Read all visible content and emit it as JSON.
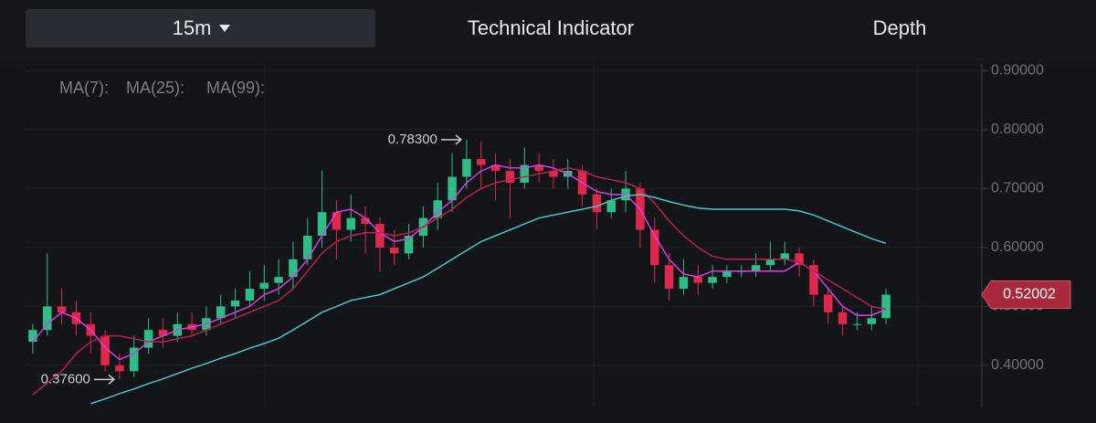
{
  "tabs": {
    "interval": "15m",
    "indicator": "Technical Indicator",
    "depth": "Depth"
  },
  "chart_data": {
    "type": "candlestick",
    "ylim": [
      0.33,
      0.91
    ],
    "yticks": [
      {
        "value": 0.4,
        "label": "0.40000"
      },
      {
        "value": 0.5,
        "label": "0.50000"
      },
      {
        "value": 0.6,
        "label": "0.60000"
      },
      {
        "value": 0.7,
        "label": "0.70000"
      },
      {
        "value": 0.8,
        "label": "0.80000"
      },
      {
        "value": 0.9,
        "label": "0.90000"
      }
    ],
    "grid": true,
    "up_color": "#2ebd85",
    "down_color": "#e0294a",
    "candles": {
      "open": [
        0.44,
        0.46,
        0.5,
        0.49,
        0.47,
        0.45,
        0.4,
        0.39,
        0.43,
        0.46,
        0.45,
        0.47,
        0.46,
        0.48,
        0.5,
        0.51,
        0.53,
        0.54,
        0.55,
        0.58,
        0.62,
        0.66,
        0.63,
        0.65,
        0.64,
        0.6,
        0.59,
        0.62,
        0.65,
        0.68,
        0.72,
        0.75,
        0.74,
        0.73,
        0.71,
        0.74,
        0.73,
        0.72,
        0.73,
        0.69,
        0.66,
        0.68,
        0.7,
        0.63,
        0.57,
        0.53,
        0.55,
        0.54,
        0.55,
        0.56,
        0.56,
        0.57,
        0.58,
        0.59,
        0.57,
        0.52,
        0.49,
        0.47,
        0.47,
        0.48
      ],
      "high": [
        0.47,
        0.59,
        0.53,
        0.51,
        0.49,
        0.46,
        0.42,
        0.45,
        0.48,
        0.48,
        0.49,
        0.49,
        0.5,
        0.52,
        0.53,
        0.56,
        0.57,
        0.58,
        0.61,
        0.65,
        0.73,
        0.68,
        0.69,
        0.67,
        0.65,
        0.63,
        0.64,
        0.67,
        0.71,
        0.76,
        0.783,
        0.78,
        0.76,
        0.75,
        0.77,
        0.76,
        0.75,
        0.75,
        0.74,
        0.7,
        0.7,
        0.73,
        0.71,
        0.65,
        0.59,
        0.58,
        0.57,
        0.57,
        0.57,
        0.57,
        0.59,
        0.61,
        0.61,
        0.6,
        0.58,
        0.53,
        0.5,
        0.49,
        0.5,
        0.53
      ],
      "low": [
        0.42,
        0.45,
        0.47,
        0.45,
        0.42,
        0.39,
        0.376,
        0.38,
        0.42,
        0.43,
        0.44,
        0.45,
        0.45,
        0.47,
        0.48,
        0.5,
        0.51,
        0.52,
        0.53,
        0.57,
        0.6,
        0.58,
        0.61,
        0.59,
        0.56,
        0.57,
        0.58,
        0.6,
        0.63,
        0.66,
        0.7,
        0.7,
        0.68,
        0.65,
        0.7,
        0.71,
        0.7,
        0.7,
        0.67,
        0.63,
        0.65,
        0.66,
        0.6,
        0.54,
        0.51,
        0.52,
        0.52,
        0.53,
        0.54,
        0.55,
        0.55,
        0.56,
        0.57,
        0.55,
        0.5,
        0.47,
        0.45,
        0.46,
        0.46,
        0.47
      ],
      "close": [
        0.46,
        0.5,
        0.49,
        0.47,
        0.45,
        0.4,
        0.39,
        0.43,
        0.46,
        0.45,
        0.47,
        0.46,
        0.48,
        0.5,
        0.51,
        0.53,
        0.54,
        0.55,
        0.58,
        0.62,
        0.66,
        0.63,
        0.65,
        0.64,
        0.6,
        0.59,
        0.62,
        0.65,
        0.68,
        0.72,
        0.75,
        0.74,
        0.73,
        0.71,
        0.74,
        0.73,
        0.72,
        0.73,
        0.69,
        0.66,
        0.68,
        0.7,
        0.63,
        0.57,
        0.53,
        0.55,
        0.54,
        0.55,
        0.56,
        0.56,
        0.57,
        0.58,
        0.59,
        0.57,
        0.52,
        0.49,
        0.47,
        0.47,
        0.48,
        0.52
      ]
    },
    "series": [
      {
        "name": "MA(7):",
        "color": "#d63ee0",
        "values": [
          0.44,
          0.47,
          0.49,
          0.48,
          0.46,
          0.43,
          0.41,
          0.42,
          0.44,
          0.45,
          0.46,
          0.465,
          0.47,
          0.48,
          0.49,
          0.5,
          0.52,
          0.53,
          0.55,
          0.58,
          0.62,
          0.66,
          0.665,
          0.65,
          0.625,
          0.61,
          0.615,
          0.635,
          0.66,
          0.68,
          0.71,
          0.73,
          0.74,
          0.735,
          0.735,
          0.74,
          0.735,
          0.725,
          0.71,
          0.695,
          0.69,
          0.69,
          0.665,
          0.62,
          0.58,
          0.555,
          0.55,
          0.56,
          0.56,
          0.56,
          0.56,
          0.56,
          0.56,
          0.575,
          0.56,
          0.53,
          0.5,
          0.485,
          0.485,
          0.495
        ]
      },
      {
        "name": "MA(25):",
        "color": "#b3244f",
        "values": [
          0.35,
          0.37,
          0.39,
          0.42,
          0.44,
          0.45,
          0.45,
          0.445,
          0.44,
          0.44,
          0.445,
          0.45,
          0.46,
          0.47,
          0.48,
          0.49,
          0.5,
          0.51,
          0.53,
          0.56,
          0.59,
          0.61,
          0.62,
          0.625,
          0.625,
          0.62,
          0.625,
          0.635,
          0.65,
          0.665,
          0.685,
          0.7,
          0.71,
          0.715,
          0.72,
          0.725,
          0.73,
          0.735,
          0.73,
          0.72,
          0.715,
          0.71,
          0.7,
          0.675,
          0.645,
          0.62,
          0.6,
          0.585,
          0.58,
          0.58,
          0.58,
          0.58,
          0.58,
          0.575,
          0.56,
          0.545,
          0.53,
          0.515,
          0.5,
          0.495
        ]
      },
      {
        "name": "MA(99):",
        "color": "#4fc3c7",
        "values": [
          null,
          null,
          null,
          null,
          0.335,
          0.343,
          0.352,
          0.36,
          0.369,
          0.377,
          0.386,
          0.395,
          0.403,
          0.412,
          0.42,
          0.429,
          0.437,
          0.446,
          0.46,
          0.475,
          0.49,
          0.5,
          0.51,
          0.515,
          0.52,
          0.53,
          0.54,
          0.55,
          0.565,
          0.58,
          0.595,
          0.61,
          0.62,
          0.63,
          0.64,
          0.65,
          0.655,
          0.66,
          0.665,
          0.67,
          0.68,
          0.687,
          0.69,
          0.685,
          0.678,
          0.672,
          0.667,
          0.665,
          0.665,
          0.665,
          0.665,
          0.665,
          0.665,
          0.662,
          0.655,
          0.645,
          0.635,
          0.625,
          0.615,
          0.607
        ]
      }
    ],
    "annotations": [
      {
        "value": 0.783,
        "label": "0.78300"
      },
      {
        "value": 0.376,
        "label": "0.37600"
      }
    ],
    "last_price": 0.52002,
    "last_price_color": "#a8283c"
  }
}
